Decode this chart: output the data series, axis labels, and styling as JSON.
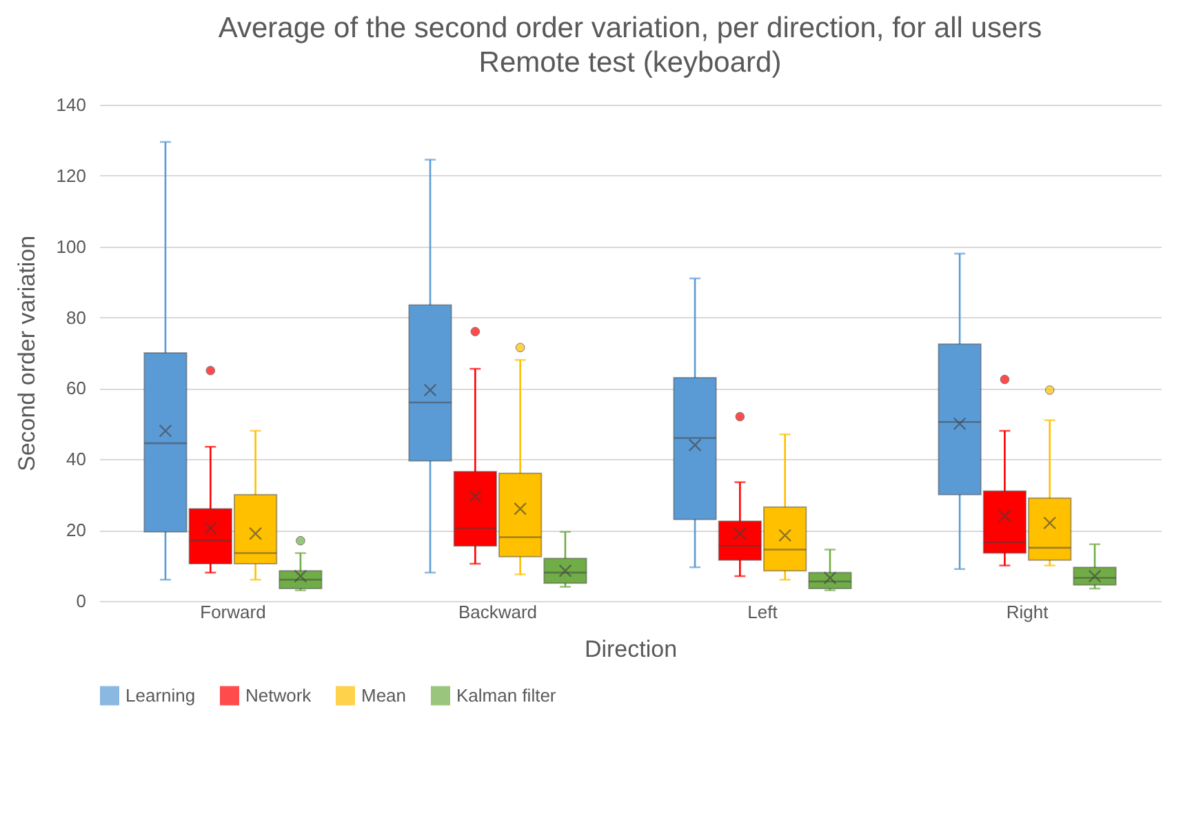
{
  "chart_data": {
    "type": "box",
    "title": "Average of the second order variation, per direction, for all users",
    "subtitle": "Remote test (keyboard)",
    "xlabel": "Direction",
    "ylabel": "Second order variation",
    "categories": [
      "Forward",
      "Backward",
      "Left",
      "Right"
    ],
    "ylim": [
      0,
      140
    ],
    "yticks": [
      0,
      20,
      40,
      60,
      80,
      100,
      120,
      140
    ],
    "grid": "y",
    "legend": "bottom",
    "series": [
      {
        "name": "Learning",
        "color": "#5b9bd5",
        "boxes": [
          {
            "low": 6,
            "q1": 19.5,
            "median": 44.5,
            "q3": 70,
            "high": 129.5,
            "mean": 48
          },
          {
            "low": 8,
            "q1": 39.5,
            "median": 56,
            "q3": 83.5,
            "high": 124.5,
            "mean": 59.5
          },
          {
            "low": 9.5,
            "q1": 23,
            "median": 46,
            "q3": 63,
            "high": 91,
            "mean": 44
          },
          {
            "low": 9,
            "q1": 30,
            "median": 50.5,
            "q3": 72.5,
            "high": 98,
            "mean": 50
          }
        ]
      },
      {
        "name": "Network",
        "color": "#ff0000",
        "boxes": [
          {
            "low": 8,
            "q1": 10.5,
            "median": 17,
            "q3": 26,
            "high": 43.5,
            "mean": 20.5,
            "outliers": [
              65
            ]
          },
          {
            "low": 10.5,
            "q1": 15.5,
            "median": 20.5,
            "q3": 36.5,
            "high": 65.5,
            "mean": 29.5,
            "outliers": [
              76
            ]
          },
          {
            "low": 7,
            "q1": 11.5,
            "median": 15.5,
            "q3": 22.5,
            "high": 33.5,
            "mean": 19,
            "outliers": [
              52
            ]
          },
          {
            "low": 10,
            "q1": 13.5,
            "median": 16.5,
            "q3": 31,
            "high": 48,
            "mean": 24,
            "outliers": [
              62.5
            ]
          }
        ]
      },
      {
        "name": "Mean",
        "color": "#ffc000",
        "boxes": [
          {
            "low": 6,
            "q1": 10.5,
            "median": 13.5,
            "q3": 30,
            "high": 48,
            "mean": 19
          },
          {
            "low": 7.5,
            "q1": 12.5,
            "median": 18,
            "q3": 36,
            "high": 68,
            "mean": 26,
            "outliers": [
              71.5
            ]
          },
          {
            "low": 6,
            "q1": 8.5,
            "median": 14.5,
            "q3": 26.5,
            "high": 47,
            "mean": 18.5
          },
          {
            "low": 10,
            "q1": 11.5,
            "median": 15,
            "q3": 29,
            "high": 51,
            "mean": 22,
            "outliers": [
              59.5
            ]
          }
        ]
      },
      {
        "name": "Kalman filter",
        "color": "#70ad47",
        "boxes": [
          {
            "low": 3,
            "q1": 3.5,
            "median": 6,
            "q3": 8.5,
            "high": 13.5,
            "mean": 7,
            "outliers": [
              17
            ]
          },
          {
            "low": 4,
            "q1": 5,
            "median": 8,
            "q3": 12,
            "high": 19.5,
            "mean": 8.5
          },
          {
            "low": 3,
            "q1": 3.5,
            "median": 5.5,
            "q3": 8,
            "high": 14.5,
            "mean": 6.5
          },
          {
            "low": 3.5,
            "q1": 4.5,
            "median": 6.5,
            "q3": 9.5,
            "high": 16,
            "mean": 7
          }
        ]
      }
    ]
  }
}
